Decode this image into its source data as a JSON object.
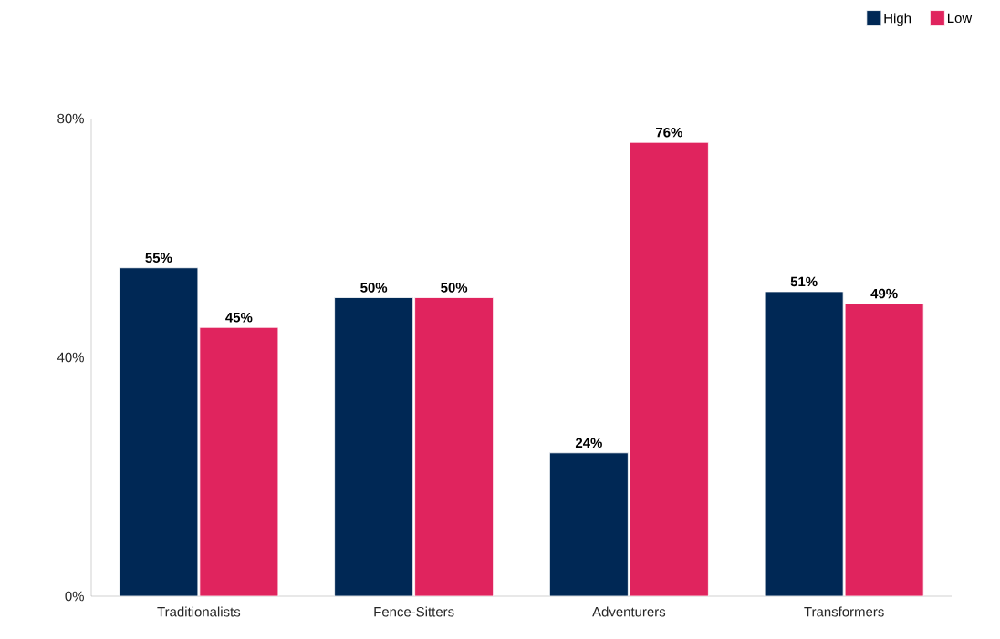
{
  "chart_data": {
    "type": "bar",
    "categories": [
      "Traditionalists",
      "Fence-Sitters",
      "Adventurers",
      "Transformers"
    ],
    "series": [
      {
        "name": "High",
        "color": "#002855",
        "values": [
          55,
          50,
          24,
          51
        ],
        "value_labels": [
          "55%",
          "50%",
          "24%",
          "51%"
        ]
      },
      {
        "name": "Low",
        "color": "#e0245e",
        "values": [
          45,
          50,
          76,
          49
        ],
        "value_labels": [
          "45%",
          "50%",
          "76%",
          "49%"
        ]
      }
    ],
    "ylim": [
      0,
      80
    ],
    "yticks": [
      {
        "value": 0,
        "label": "0%"
      },
      {
        "value": 40,
        "label": "40%"
      },
      {
        "value": 80,
        "label": "80%"
      }
    ],
    "legend": "top right"
  }
}
